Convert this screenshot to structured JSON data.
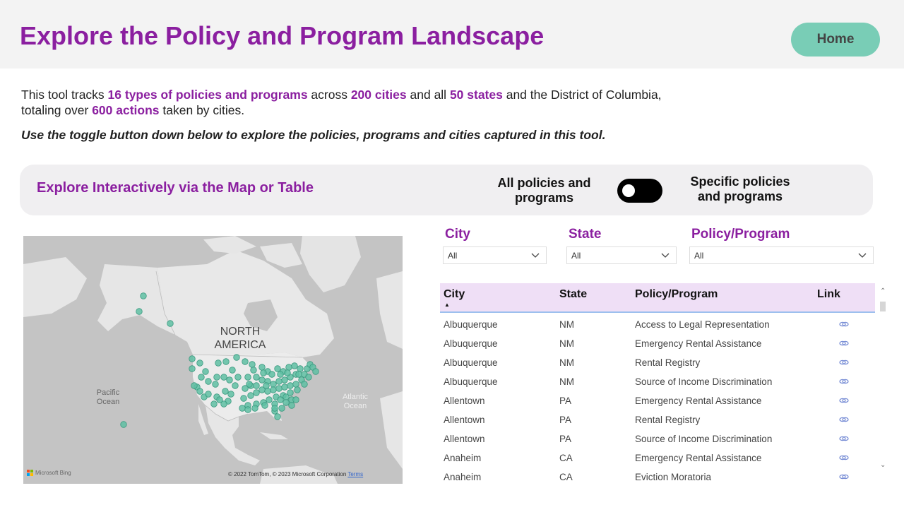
{
  "header": {
    "title": "Explore the Policy and Program Landscape",
    "home_label": "Home"
  },
  "intro": {
    "p1": "This tool tracks ",
    "h1": "16 types of policies and programs",
    "p2": " across ",
    "h2": "200 cities",
    "p3": " and all ",
    "h3": "50 states",
    "p4": " and the District of Columbia,",
    "p5": "totaling over ",
    "h4": "600 actions",
    "p6": " taken by cities.",
    "instruction": "Use the toggle button down below to explore the policies, programs and cities captured in this tool."
  },
  "explore": {
    "title": "Explore Interactively via the Map or Table",
    "toggle_left": "All policies and programs",
    "toggle_right": "Specific policies and programs"
  },
  "map": {
    "continent": "NORTH AMERICA",
    "pacific": "Pacific Ocean",
    "atlantic": "Atlantic Ocean",
    "bing": "Microsoft Bing",
    "copyright": "© 2022 TomTom, © 2023 Microsoft Corporation",
    "terms": "Terms",
    "marker_color": "#5fbfa3"
  },
  "filters": {
    "city_label": "City",
    "city_value": "All",
    "state_label": "State",
    "state_value": "All",
    "policy_label": "Policy/Program",
    "policy_value": "All"
  },
  "table": {
    "headers": {
      "city": "City",
      "state": "State",
      "policy": "Policy/Program",
      "link": "Link"
    },
    "rows": [
      {
        "city": "Albuquerque",
        "state": "NM",
        "policy": "Access to Legal Representation"
      },
      {
        "city": "Albuquerque",
        "state": "NM",
        "policy": "Emergency Rental Assistance"
      },
      {
        "city": "Albuquerque",
        "state": "NM",
        "policy": "Rental Registry"
      },
      {
        "city": "Albuquerque",
        "state": "NM",
        "policy": "Source of Income Discrimination"
      },
      {
        "city": "Allentown",
        "state": "PA",
        "policy": "Emergency Rental Assistance"
      },
      {
        "city": "Allentown",
        "state": "PA",
        "policy": "Rental Registry"
      },
      {
        "city": "Allentown",
        "state": "PA",
        "policy": "Source of Income Discrimination"
      },
      {
        "city": "Anaheim",
        "state": "CA",
        "policy": "Emergency Rental Assistance"
      },
      {
        "city": "Anaheim",
        "state": "CA",
        "policy": "Eviction Moratoria"
      }
    ]
  },
  "colors": {
    "brand_purple": "#8b1fa0",
    "home_button": "#79cdb6",
    "header_bg": "#f3f3f3",
    "table_header_bg": "#efdff6"
  }
}
